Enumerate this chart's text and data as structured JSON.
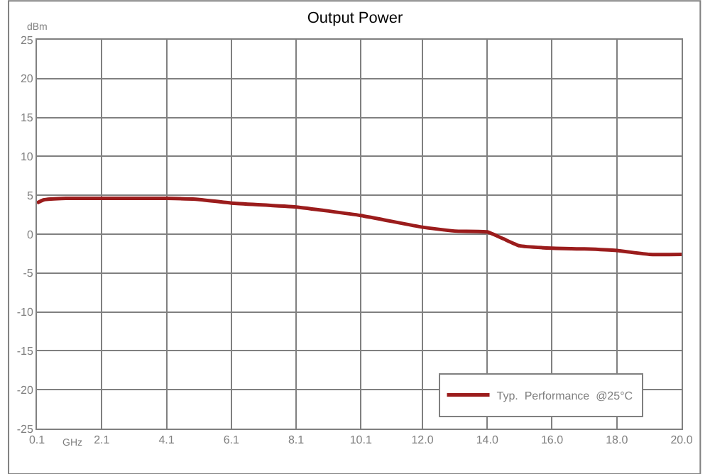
{
  "chart_data": {
    "type": "line",
    "title": "Output Power",
    "xlabel": "GHz",
    "ylabel": "dBm",
    "x": [
      0.1,
      0.3,
      1.0,
      2.1,
      4.1,
      5.0,
      6.1,
      8.1,
      10.1,
      12.0,
      13.0,
      14.0,
      14.5,
      15.0,
      16.0,
      17.0,
      18.0,
      19.0,
      20.0
    ],
    "series": [
      {
        "name": "Typ.  Performance  @25°C",
        "color": "#9b1c1c",
        "values": [
          4.0,
          4.4,
          4.6,
          4.6,
          4.6,
          4.5,
          4.0,
          3.5,
          2.4,
          0.9,
          0.4,
          0.3,
          -0.6,
          -1.5,
          -1.8,
          -1.9,
          -2.1,
          -2.6,
          -2.6
        ]
      }
    ],
    "xlim": [
      0.1,
      20.0
    ],
    "xticks": [
      0.1,
      2.1,
      4.1,
      6.1,
      8.1,
      10.1,
      {
        "value": 12,
        "label": "12.0"
      },
      {
        "value": 14,
        "label": "14.0"
      },
      {
        "value": 16,
        "label": "16.0"
      },
      {
        "value": 18,
        "label": "18.0"
      },
      {
        "value": 20,
        "label": "20.0"
      }
    ],
    "ylim": [
      -25,
      25
    ],
    "yticks": [
      -25,
      -20,
      -15,
      -10,
      -5,
      0,
      5,
      10,
      15,
      20,
      25
    ],
    "grid": true,
    "legend": "bottom right",
    "marker": "none",
    "line_style": "solid"
  }
}
